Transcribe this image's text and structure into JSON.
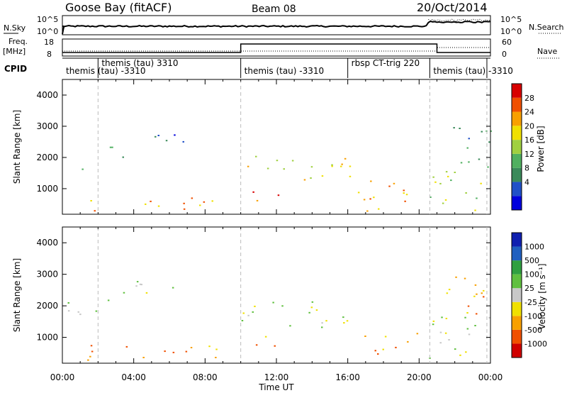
{
  "header": {
    "station": "Goose Bay (fitACF)",
    "beam": "Beam 08",
    "date": "20/Oct/2014"
  },
  "noise_panel": {
    "left_label": "N.Sky",
    "right_label": "N.Search",
    "left_ticks": [
      "10^5",
      "10^0"
    ],
    "right_ticks": [
      "10^5",
      "10^0"
    ]
  },
  "freq_panel": {
    "left_label_1": "Freq.",
    "left_label_2": "[MHz]",
    "right_label": "Nave",
    "left_ticks": [
      "18",
      "8"
    ],
    "right_ticks": [
      "60",
      "0"
    ]
  },
  "cpid": {
    "label": "CPID",
    "entries": [
      {
        "text": "themis (tau) 3310",
        "row": "upper",
        "start_h": 2.0
      },
      {
        "text": "themis (tau) -3310",
        "row": "lower",
        "start_h": 0.0
      },
      {
        "text": "themis (tau) -3310",
        "row": "lower",
        "start_h": 10.0
      },
      {
        "text": "rbsp CT-trig 220",
        "row": "upper",
        "start_h": 16.0
      },
      {
        "text": "themis (tau) -3310",
        "row": "lower",
        "start_h": 20.6
      }
    ]
  },
  "chart_data": [
    {
      "type": "heatmap",
      "name": "power",
      "ylabel": "Slant Range [km]",
      "xlabel": "Time UT",
      "y_ticks": [
        "4000",
        "3000",
        "2000",
        "1000"
      ],
      "x_ticks": [
        "00:00",
        "04:00",
        "08:00",
        "12:00",
        "16:00",
        "20:00",
        "00:00"
      ],
      "xlim_hours": [
        0,
        24
      ],
      "ylim_km": [
        180,
        4500
      ],
      "colorbar": {
        "label": "Power [dB]",
        "ticks": [
          "28",
          "24",
          "20",
          "16",
          "12",
          "8",
          "4"
        ],
        "colors": [
          "#0000dd",
          "#2050c8",
          "#3a8a5a",
          "#50b060",
          "#a0d040",
          "#f0e000",
          "#f8a000",
          "#f05000",
          "#d80000"
        ]
      },
      "regions": [
        {
          "t0": 0.2,
          "t1": 2.0,
          "r0": 1600,
          "r1": 2300,
          "level": 4
        },
        {
          "t0": 2.0,
          "t1": 3.5,
          "r0": 1900,
          "r1": 2600,
          "level": 3
        },
        {
          "t0": 3.3,
          "t1": 7.0,
          "r0": 2300,
          "r1": 2850,
          "level": 1
        },
        {
          "t0": 0.3,
          "t1": 0.6,
          "r0": 1250,
          "r1": 1600,
          "level": 5
        },
        {
          "t0": 1.3,
          "t1": 9.5,
          "r0": 300,
          "r1": 800,
          "level": 6
        },
        {
          "t0": 10.0,
          "t1": 13.5,
          "r0": 1200,
          "r1": 2300,
          "level": 5
        },
        {
          "t0": 10.5,
          "t1": 12.5,
          "r0": 600,
          "r1": 1200,
          "level": 7
        },
        {
          "t0": 13.0,
          "t1": 16.2,
          "r0": 1300,
          "r1": 2200,
          "level": 5
        },
        {
          "t0": 16.5,
          "t1": 20.0,
          "r0": 300,
          "r1": 1300,
          "level": 6
        },
        {
          "t0": 20.5,
          "t1": 24.0,
          "r0": 300,
          "r1": 1700,
          "level": 4
        },
        {
          "t0": 21.5,
          "t1": 24.0,
          "r0": 1700,
          "r1": 3000,
          "level": 2
        }
      ]
    },
    {
      "type": "heatmap",
      "name": "velocity",
      "ylabel": "Slant Range [km]",
      "xlabel": "Time UT",
      "y_ticks": [
        "4000",
        "3000",
        "2000",
        "1000"
      ],
      "x_ticks": [
        "00:00",
        "04:00",
        "08:00",
        "12:00",
        "16:00",
        "20:00",
        "00:00"
      ],
      "xlim_hours": [
        0,
        24
      ],
      "ylim_km": [
        180,
        4500
      ],
      "colorbar": {
        "label": "Velocity [m s⁻¹]",
        "ticks": [
          "1000",
          "500",
          "100",
          "25",
          "-25",
          "-100",
          "-500",
          "-1000"
        ],
        "colors": [
          "#d00000",
          "#f05000",
          "#f8a000",
          "#f0e000",
          "#c8c8c8",
          "#60c040",
          "#30a040",
          "#2060c0",
          "#1020b0"
        ]
      },
      "regions": [
        {
          "t0": 0.2,
          "t1": 2.0,
          "r0": 1700,
          "r1": 2300,
          "level": 4
        },
        {
          "t0": 2.0,
          "t1": 3.5,
          "r0": 1900,
          "r1": 2600,
          "level": 4
        },
        {
          "t0": 3.3,
          "t1": 7.0,
          "r0": 2300,
          "r1": 2850,
          "level": 4
        },
        {
          "t0": 0.3,
          "t1": 0.6,
          "r0": 1200,
          "r1": 1600,
          "level": 5
        },
        {
          "t0": 1.3,
          "t1": 9.5,
          "r0": 300,
          "r1": 800,
          "level": 2
        },
        {
          "t0": 10.0,
          "t1": 13.5,
          "r0": 1200,
          "r1": 2300,
          "level": 4
        },
        {
          "t0": 10.5,
          "t1": 12.5,
          "r0": 600,
          "r1": 1200,
          "level": 2
        },
        {
          "t0": 13.0,
          "t1": 16.2,
          "r0": 1300,
          "r1": 2200,
          "level": 4
        },
        {
          "t0": 16.5,
          "t1": 20.0,
          "r0": 300,
          "r1": 1300,
          "level": 2
        },
        {
          "t0": 20.5,
          "t1": 24.0,
          "r0": 300,
          "r1": 1700,
          "level": 4
        },
        {
          "t0": 21.5,
          "t1": 24.0,
          "r0": 1700,
          "r1": 3000,
          "level": 2
        }
      ]
    }
  ]
}
